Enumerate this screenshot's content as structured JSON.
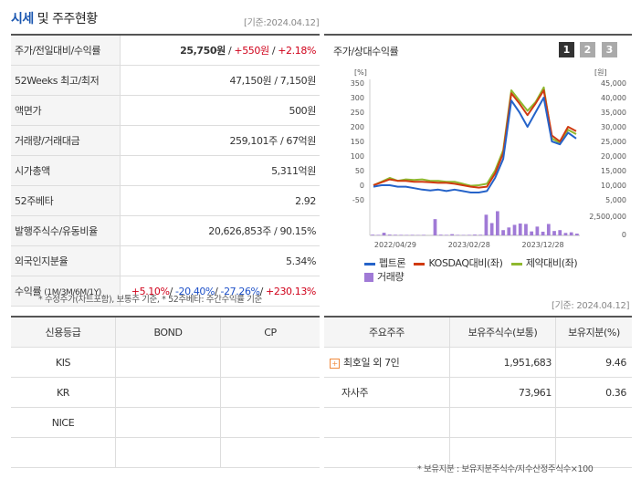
{
  "header": {
    "title_part1": "시세",
    "title_part2": "및 주주현황",
    "base_date": "[기준:2024.04.12]"
  },
  "quote": [
    {
      "label": "주가/전일대비/수익률",
      "price": "25,750원",
      "sep1": " / ",
      "change": "+550원",
      "sep2": " / ",
      "pct": "+2.18%"
    },
    {
      "label": "52Weeks 최고/최저",
      "value": "47,150원 / 7,150원"
    },
    {
      "label": "액면가",
      "value": "500원"
    },
    {
      "label": "거래량/거래대금",
      "value": "259,101주 / 67억원"
    },
    {
      "label": "시가총액",
      "value": "5,311억원"
    },
    {
      "label": "52주베타",
      "value": "2.92"
    },
    {
      "label": "발행주식수/유동비율",
      "value": "20,626,853주 / 90.15%"
    },
    {
      "label": "외국인지분율",
      "value": "5.34%"
    },
    {
      "label": "수익률",
      "label_sub": "(1M/3M/6M/1Y)",
      "r1": "+5.10%",
      "r2": "-20.40%",
      "r3": "-27.26%",
      "r4": "+230.13%",
      "sep": "/ "
    }
  ],
  "quote_note": "* 수정주가(차트포함), 보통주 기준, * 52주베타: 주간수익률 기준",
  "chart": {
    "title": "주가/상대수익률",
    "tabs": [
      "1",
      "2",
      "3"
    ],
    "legend": [
      "펩트론",
      "KOSDAQ대비(좌)",
      "제약대비(좌)",
      "거래량"
    ],
    "colors": {
      "stock": "#2563c9",
      "kosdaq": "#d03a10",
      "pharma": "#8fb82e",
      "volume": "#a07ad6"
    }
  },
  "chart_data": {
    "type": "line",
    "title": "주가/상대수익률",
    "left_axis": {
      "unit": "[%]",
      "ticks": [
        350,
        300,
        250,
        200,
        150,
        100,
        50,
        0,
        -50
      ],
      "range": [
        -50,
        350
      ]
    },
    "right_axis": {
      "unit": "[원]",
      "ticks": [
        "45,000",
        "40,000",
        "35,000",
        "30,000",
        "25,000",
        "20,000",
        "15,000",
        "10,000",
        "5,000"
      ],
      "range": [
        5000,
        45000
      ]
    },
    "volume_axis": {
      "ticks": [
        "2,500,000",
        "0"
      ],
      "max": 2500000
    },
    "x_ticks": [
      {
        "i": 4,
        "label": "2022/04/29"
      },
      {
        "i": 17,
        "label": "2023/02/28"
      },
      {
        "i": 30,
        "label": "2023/12/28"
      }
    ],
    "series": [
      {
        "name": "펩트론",
        "values": [
          -5,
          0,
          0,
          -5,
          -5,
          -10,
          -15,
          -18,
          -15,
          -20,
          -15,
          -20,
          -25,
          -25,
          -20,
          25,
          90,
          290,
          250,
          200,
          250,
          300,
          150,
          140,
          180,
          160
        ]
      },
      {
        "name": "KOSDAQ대비(좌)",
        "values": [
          0,
          10,
          20,
          15,
          15,
          12,
          12,
          10,
          8,
          8,
          5,
          0,
          -5,
          -8,
          -5,
          40,
          110,
          315,
          280,
          240,
          280,
          325,
          170,
          150,
          200,
          185
        ]
      },
      {
        "name": "제약대비(좌)",
        "values": [
          0,
          12,
          25,
          15,
          20,
          18,
          20,
          15,
          15,
          12,
          12,
          5,
          -2,
          0,
          5,
          50,
          120,
          325,
          290,
          255,
          285,
          335,
          160,
          145,
          190,
          175
        ]
      }
    ],
    "volume": [
      80000,
      60000,
      300000,
      90000,
      70000,
      60000,
      50000,
      60000,
      40000,
      60000,
      1850000,
      80000,
      60000,
      140000,
      60000,
      50000,
      60000,
      90000,
      70000,
      2350000,
      1400000,
      2750000,
      600000,
      900000,
      1200000,
      1350000,
      1300000,
      450000,
      1000000,
      420000,
      1300000,
      500000,
      600000,
      280000,
      350000,
      200000
    ],
    "volume_x_index": [
      0,
      1,
      2,
      3,
      4,
      5,
      6,
      7,
      8,
      9,
      11,
      12,
      13,
      14,
      15,
      16,
      17,
      18,
      19,
      20,
      21,
      22,
      23,
      24,
      25,
      26,
      27,
      28,
      29,
      30,
      31,
      32,
      33,
      34,
      35,
      36
    ]
  },
  "base_date2": "[기준: 2024.04.12]",
  "credit": {
    "headers": [
      "신용등급",
      "BOND",
      "CP"
    ],
    "rows": [
      [
        "KIS",
        "",
        ""
      ],
      [
        "KR",
        "",
        ""
      ],
      [
        "NICE",
        "",
        ""
      ],
      [
        "",
        "",
        ""
      ]
    ]
  },
  "holders": {
    "headers": [
      "주요주주",
      "보유주식수(보통)",
      "보유지분(%)"
    ],
    "rows": [
      {
        "name": "최호일 외 7인",
        "shares": "1,951,683",
        "pct": "9.46",
        "expand": "+"
      },
      {
        "name": "자사주",
        "shares": "73,961",
        "pct": "0.36",
        "expand": ""
      },
      {
        "name": "",
        "shares": "",
        "pct": "",
        "expand": ""
      },
      {
        "name": "",
        "shares": "",
        "pct": "",
        "expand": ""
      }
    ],
    "note": "* 보유지분 : 보유지분주식수/지수산정주식수×100"
  }
}
